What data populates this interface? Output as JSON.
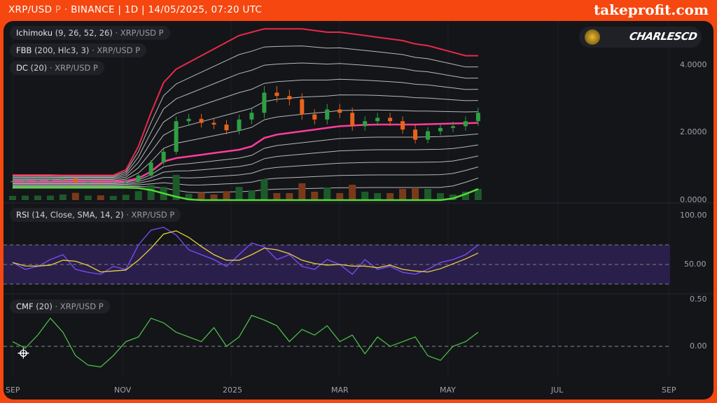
{
  "header": {
    "symbol": "XRP/USD",
    "symbol_suffix": "P",
    "info": "· BINANCE | 1D | 14/05/2025, 07:20 UTC"
  },
  "brand": "takeprofit.com",
  "user": {
    "name": "CHARLESCD"
  },
  "legends": {
    "ichimoku": {
      "name": "Ichimoku",
      "params": "(9, 26, 52, 26)",
      "source": "· XRP/USD P"
    },
    "fbb": {
      "name": "FBB",
      "params": "(200, Hlc3, 3)",
      "source": "· XRP/USD P"
    },
    "dc": {
      "name": "DC",
      "params": "(20)",
      "source": "· XRP/USD P"
    },
    "rsi": {
      "name": "RSI",
      "params": "(14, Close, SMA, 14, 2)",
      "source": "· XRP/USD P"
    },
    "cmf": {
      "name": "CMF",
      "params": "(20)",
      "source": "· XRP/USD P"
    }
  },
  "colors": {
    "up": "#2ea043",
    "down": "#e8631c",
    "fbb_upper": "#e8294a",
    "fbb_basis": "#ff3d9a",
    "fbb_lower": "#55d93a",
    "bands": "#b8b8bc",
    "rsi": "#7b4dff",
    "rsi_sma": "#e8d23a",
    "rsi_band": "#2a1f4a",
    "cmf": "#4cc94a",
    "frame": "#f5470f"
  },
  "chart_data": [
    {
      "type": "candlestick",
      "x_ticks": [
        "SEP",
        "NOV",
        "2025",
        "MAR",
        "MAY",
        "JUL",
        "SEP"
      ],
      "y_ticks": [
        "4.0000",
        "2.0000",
        "0.0000"
      ],
      "ylim": [
        0,
        5.2
      ],
      "grid": true,
      "closes_weekly": [
        0.56,
        0.57,
        0.58,
        0.59,
        0.64,
        0.53,
        0.54,
        0.52,
        0.52,
        0.56,
        0.73,
        1.12,
        1.44,
        2.35,
        2.42,
        2.3,
        2.25,
        2.08,
        2.4,
        2.6,
        3.2,
        3.1,
        3.0,
        2.55,
        2.4,
        2.7,
        2.6,
        2.2,
        2.35,
        2.45,
        2.35,
        2.1,
        1.8,
        2.05,
        2.15,
        2.2,
        2.35,
        2.6
      ],
      "fbb_upper": [
        0.75,
        0.75,
        0.75,
        0.75,
        0.74,
        0.74,
        0.74,
        0.74,
        0.74,
        0.9,
        1.6,
        2.6,
        3.5,
        3.9,
        4.1,
        4.3,
        4.5,
        4.7,
        4.9,
        5.0,
        5.1,
        5.1,
        5.1,
        5.1,
        5.05,
        5.0,
        5.0,
        4.95,
        4.9,
        4.85,
        4.8,
        4.75,
        4.65,
        4.6,
        4.5,
        4.4,
        4.3,
        4.3
      ],
      "fbb_basis": [
        0.55,
        0.55,
        0.55,
        0.55,
        0.55,
        0.55,
        0.55,
        0.55,
        0.55,
        0.57,
        0.65,
        0.85,
        1.15,
        1.25,
        1.3,
        1.35,
        1.4,
        1.45,
        1.5,
        1.6,
        1.85,
        1.95,
        2.0,
        2.05,
        2.1,
        2.15,
        2.2,
        2.22,
        2.24,
        2.25,
        2.25,
        2.25,
        2.25,
        2.26,
        2.27,
        2.28,
        2.29,
        2.3
      ],
      "fbb_lower": [
        0.37,
        0.37,
        0.37,
        0.37,
        0.37,
        0.37,
        0.37,
        0.37,
        0.37,
        0.37,
        0.36,
        0.3,
        0.2,
        0.1,
        0.02,
        0,
        0,
        0,
        0,
        0,
        0,
        0,
        0,
        0,
        0,
        0,
        0,
        0,
        0,
        0,
        0,
        0,
        0,
        0,
        0,
        0.05,
        0.18,
        0.33
      ]
    },
    {
      "type": "line",
      "y_ticks": [
        "100.00",
        "50.00"
      ],
      "ylim": [
        0,
        100
      ],
      "levels": [
        70,
        50,
        30
      ],
      "values": [
        52,
        45,
        48,
        55,
        60,
        45,
        42,
        40,
        48,
        45,
        70,
        85,
        88,
        80,
        65,
        60,
        55,
        48,
        60,
        72,
        68,
        55,
        60,
        48,
        45,
        55,
        50,
        40,
        55,
        45,
        48,
        42,
        40,
        45,
        52,
        55,
        60,
        70
      ]
    },
    {
      "type": "line",
      "y_ticks": [
        "0.50",
        "0.00"
      ],
      "ylim": [
        -0.35,
        0.5
      ],
      "levels": [
        0
      ],
      "values": [
        0.05,
        -0.02,
        0.12,
        0.3,
        0.15,
        -0.1,
        -0.2,
        -0.22,
        -0.1,
        0.05,
        0.1,
        0.3,
        0.25,
        0.15,
        0.1,
        0.05,
        0.2,
        0.0,
        0.1,
        0.33,
        0.28,
        0.22,
        0.05,
        0.18,
        0.12,
        0.22,
        0.05,
        0.12,
        -0.08,
        0.1,
        0.0,
        0.05,
        0.1,
        -0.1,
        -0.15,
        0.0,
        0.05,
        0.15
      ]
    }
  ]
}
